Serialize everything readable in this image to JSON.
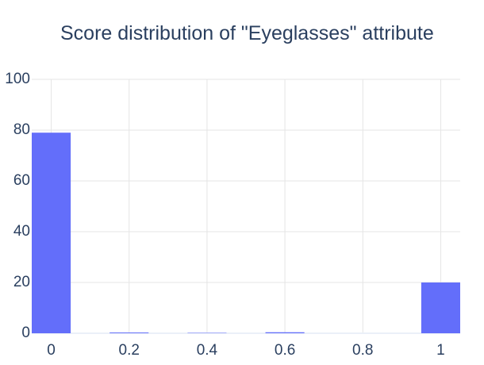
{
  "chart_data": {
    "type": "bar",
    "title": "Score distribution of \"Eyeglasses\" attribute",
    "xlabel": "",
    "ylabel": "",
    "bin_width": 0.1,
    "bins": [
      {
        "x0": -0.05,
        "x1": 0.05,
        "value": 79
      },
      {
        "x0": 0.15,
        "x1": 0.25,
        "value": 0.3
      },
      {
        "x0": 0.35,
        "x1": 0.45,
        "value": 0.15
      },
      {
        "x0": 0.55,
        "x1": 0.65,
        "value": 0.4
      },
      {
        "x0": 0.95,
        "x1": 1.05,
        "value": 20
      }
    ],
    "xlim": [
      -0.05,
      1.05
    ],
    "ylim": [
      0,
      100
    ],
    "x_ticks": [
      0,
      0.2,
      0.4,
      0.6,
      0.8,
      1
    ],
    "x_tick_labels": [
      "0",
      "0.2",
      "0.4",
      "0.6",
      "0.8",
      "1"
    ],
    "y_ticks": [
      0,
      20,
      40,
      60,
      80,
      100
    ],
    "y_tick_labels": [
      "0",
      "20",
      "40",
      "60",
      "80",
      "100"
    ],
    "grid": true,
    "bar_color": "#636efa",
    "grid_color": "#e5e5e5",
    "text_color": "#2a3f5f"
  }
}
